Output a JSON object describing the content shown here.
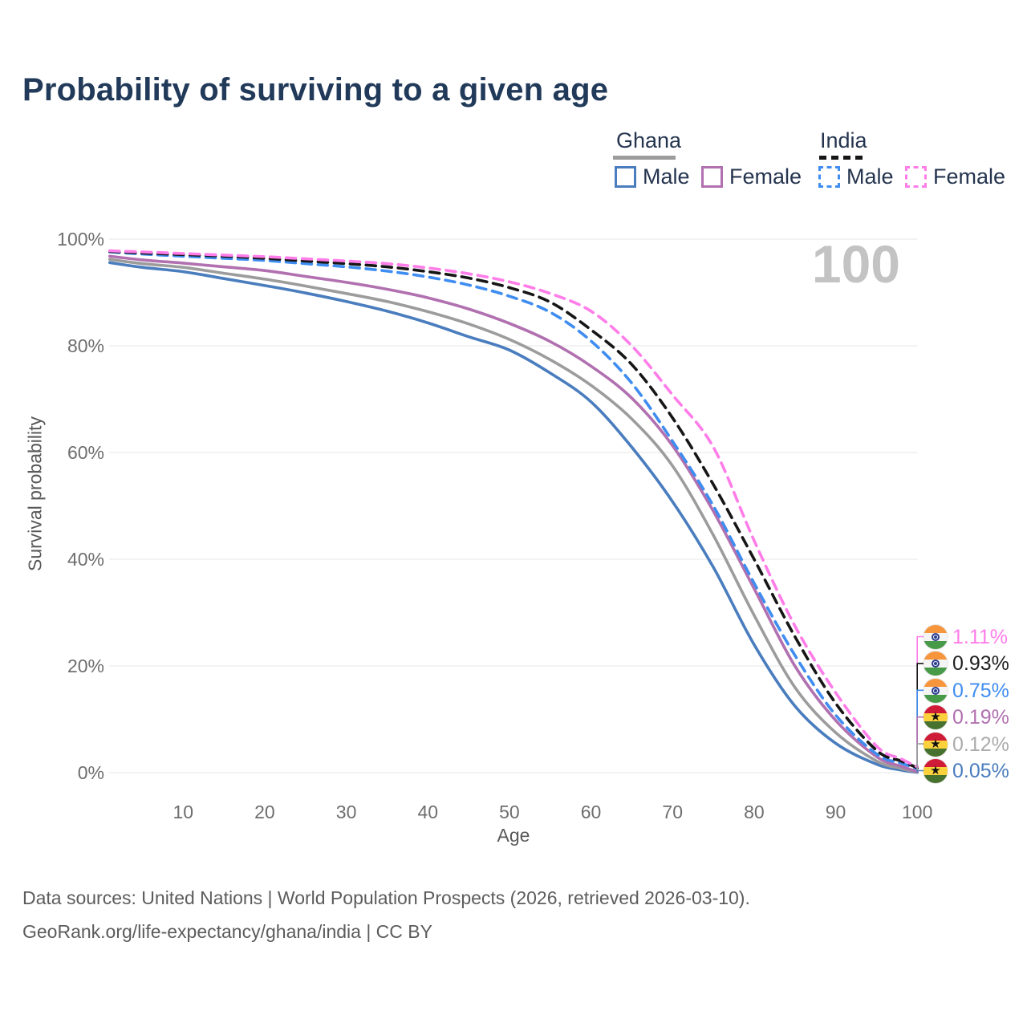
{
  "header": {
    "title": "Probability of surviving to a given age"
  },
  "legend": {
    "groups": [
      {
        "country": "Ghana",
        "style": "solid",
        "underline_color": "#9c9c9c",
        "items": [
          {
            "label": "Male",
            "color": "#4a7dbe"
          },
          {
            "label": "Female",
            "color": "#b170b0"
          }
        ]
      },
      {
        "country": "India",
        "style": "dashed",
        "underline_color": "#161616",
        "items": [
          {
            "label": "Male",
            "color": "#3f8df0"
          },
          {
            "label": "Female",
            "color": "#ff7de9"
          }
        ]
      }
    ]
  },
  "watermark": "100",
  "chart_data": {
    "type": "line",
    "title": "Probability of surviving to a given age",
    "xlabel": "Age",
    "ylabel": "Survival probability",
    "xlim": [
      1,
      100
    ],
    "ylim": [
      0,
      100
    ],
    "grid": "horizontal",
    "x_ticks": [
      10,
      20,
      30,
      40,
      50,
      60,
      70,
      80,
      90,
      100
    ],
    "y_ticks": [
      0,
      20,
      40,
      60,
      80,
      100
    ],
    "y_tick_labels": [
      "0%",
      "20%",
      "40%",
      "60%",
      "80%",
      "100%"
    ],
    "x": [
      1,
      5,
      10,
      15,
      20,
      25,
      30,
      35,
      40,
      45,
      50,
      55,
      60,
      65,
      70,
      75,
      80,
      85,
      90,
      95,
      98,
      100
    ],
    "series": [
      {
        "name": "Ghana Male",
        "country": "Ghana",
        "label": "Male",
        "color": "#4a7dbe",
        "dash": false,
        "values": [
          95.6,
          94.7,
          93.9,
          92.6,
          91.3,
          89.9,
          88.3,
          86.5,
          84.3,
          81.7,
          79.2,
          74.9,
          69.5,
          61.0,
          50.8,
          38.5,
          24.0,
          12.5,
          5.5,
          1.6,
          0.5,
          0.05
        ]
      },
      {
        "name": "Ghana",
        "country": "Ghana",
        "label": "Ghana",
        "color": "#9c9c9c",
        "dash": false,
        "values": [
          96.2,
          95.4,
          94.7,
          93.6,
          92.5,
          91.2,
          89.8,
          88.3,
          86.4,
          84.1,
          81.2,
          77.4,
          72.6,
          66.3,
          57.5,
          44.5,
          29.5,
          16.0,
          7.5,
          2.2,
          0.8,
          0.12
        ]
      },
      {
        "name": "Ghana Female",
        "country": "Ghana",
        "label": "Female",
        "color": "#b170b0",
        "dash": false,
        "values": [
          96.8,
          96.1,
          95.5,
          94.8,
          94.1,
          93.0,
          91.9,
          90.6,
          89.0,
          86.9,
          84.2,
          80.8,
          76.2,
          70.2,
          61.3,
          49.0,
          34.5,
          20.0,
          9.8,
          3.0,
          1.2,
          0.19
        ]
      },
      {
        "name": "India Male",
        "country": "India",
        "label": "Male",
        "color": "#3f8df0",
        "dash": true,
        "values": [
          97.6,
          97.2,
          96.8,
          96.4,
          96.0,
          95.4,
          94.8,
          94.0,
          92.9,
          91.4,
          89.3,
          86.3,
          80.9,
          73.0,
          62.1,
          50.0,
          35.5,
          22.0,
          10.8,
          3.5,
          1.8,
          0.75
        ]
      },
      {
        "name": "India",
        "country": "India",
        "label": "India",
        "color": "#161616",
        "dash": true,
        "values": [
          97.7,
          97.4,
          97.1,
          96.8,
          96.4,
          95.9,
          95.4,
          94.8,
          93.9,
          92.7,
          90.9,
          88.2,
          83.0,
          76.5,
          66.5,
          54.0,
          40.0,
          25.5,
          13.0,
          4.2,
          2.2,
          0.93
        ]
      },
      {
        "name": "India Female",
        "country": "India",
        "label": "Female",
        "color": "#ff7de9",
        "dash": true,
        "values": [
          97.8,
          97.6,
          97.3,
          97.0,
          96.7,
          96.3,
          95.9,
          95.4,
          94.6,
          93.5,
          92.0,
          89.8,
          86.5,
          80.0,
          70.8,
          61.0,
          43.5,
          27.5,
          15.0,
          5.0,
          2.6,
          1.11
        ]
      }
    ]
  },
  "endpoints": {
    "items": [
      {
        "series_index": 5,
        "flag": "india",
        "value": "1.11%",
        "color": "#ff7de9"
      },
      {
        "series_index": 4,
        "flag": "india",
        "value": "0.93%",
        "color": "#1f1f1f"
      },
      {
        "series_index": 3,
        "flag": "india",
        "value": "0.75%",
        "color": "#3f8df0"
      },
      {
        "series_index": 2,
        "flag": "ghana",
        "value": "0.19%",
        "color": "#b170b0"
      },
      {
        "series_index": 1,
        "flag": "ghana",
        "value": "0.12%",
        "color": "#ababab"
      },
      {
        "series_index": 0,
        "flag": "ghana",
        "value": "0.05%",
        "color": "#4a7dbe"
      }
    ]
  },
  "footer": {
    "line1": "Data sources: United Nations | World Population Prospects (2026, retrieved 2026-03-10).",
    "line2": "GeoRank.org/life-expectancy/ghana/india | CC BY"
  }
}
